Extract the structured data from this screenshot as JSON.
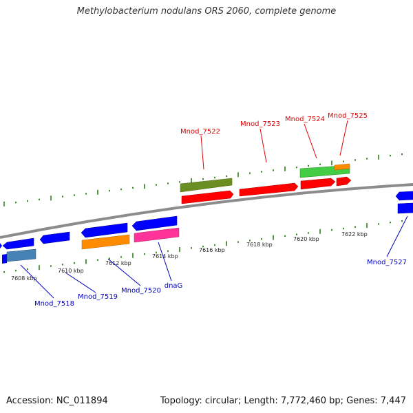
{
  "title": "Methylobacterium nodulans ORS 2060, complete genome",
  "footer": {
    "accession": "Accession: NC_011894",
    "summary": "Topology: circular; Length: 7,772,460 bp; Genes: 7,447"
  },
  "colors": {
    "backbone": "#8c8c8c",
    "tick": "#2e7d18",
    "forward_label": "#dd0000",
    "reverse_label": "#0000bb",
    "forward_gene": "#ff0000",
    "reverse_gene": "#0000ff",
    "forward_other": "#6b8e23",
    "forward_light": "#44cc44",
    "reverse_other_orange": "#ff8c00",
    "reverse_other_pink": "#ff3399",
    "reverse_other_steel": "#4682b4"
  },
  "scale_labels": [
    "7608 kbp",
    "7610 kbp",
    "7612 kbp",
    "7614 kbp",
    "7616 kbp",
    "7618 kbp",
    "7620 kbp",
    "7622 kbp"
  ],
  "forward_labels": [
    "Mnod_7522",
    "Mnod_7523",
    "Mnod_7524",
    "Mnod_7525"
  ],
  "reverse_labels": [
    "Mnod_7518",
    "Mnod_7519",
    "Mnod_7520",
    "dnaG",
    "Mnod_7527"
  ]
}
